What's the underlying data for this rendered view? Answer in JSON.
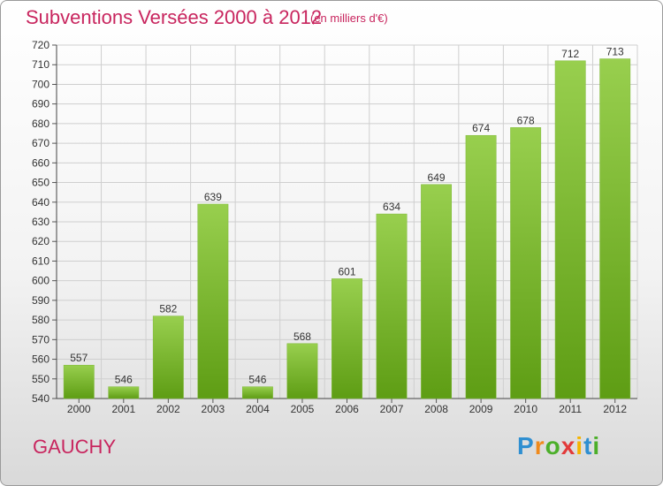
{
  "title": "Subventions Versées 2000 à 2012",
  "subtitle": "(en milliers d'€)",
  "commune": "GAUCHY",
  "logo": {
    "text": "Proxiti",
    "letters": [
      {
        "ch": "P",
        "color": "#2f8fd1"
      },
      {
        "ch": "r",
        "color": "#f08a1c"
      },
      {
        "ch": "o",
        "color": "#4caf2a"
      },
      {
        "ch": "x",
        "color": "#e23a3a"
      },
      {
        "ch": "i",
        "color": "#f5b400"
      },
      {
        "ch": "t",
        "color": "#2f8fd1"
      },
      {
        "ch": "i",
        "color": "#4caf2a"
      }
    ]
  },
  "colors": {
    "bar_top": "#98cf4e",
    "bar_bottom": "#5e9d14",
    "grid": "#cfcfcf",
    "accent": "#c8255e"
  },
  "chart_data": {
    "type": "bar",
    "categories": [
      "2000",
      "2001",
      "2002",
      "2003",
      "2004",
      "2005",
      "2006",
      "2007",
      "2008",
      "2009",
      "2010",
      "2011",
      "2012"
    ],
    "values": [
      557,
      546,
      582,
      639,
      546,
      568,
      601,
      634,
      649,
      674,
      678,
      712,
      713
    ],
    "title": "Subventions Versées 2000 à 2012",
    "xlabel": "",
    "ylabel": "",
    "ylim": [
      540,
      720
    ],
    "yticks": [
      540,
      550,
      560,
      570,
      580,
      590,
      600,
      610,
      620,
      630,
      640,
      650,
      660,
      670,
      680,
      690,
      700,
      710,
      720
    ],
    "grid": true
  }
}
